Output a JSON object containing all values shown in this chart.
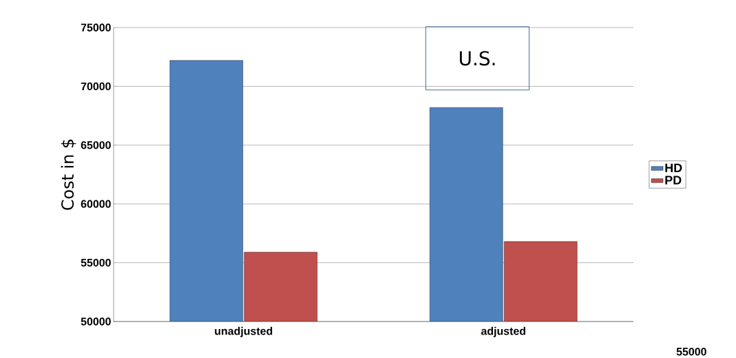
{
  "chart_data": {
    "type": "bar",
    "title": "U.S.",
    "ylabel": "Cost in $",
    "categories": [
      "unadjusted",
      "adjusted"
    ],
    "series": [
      {
        "name": "HD",
        "color": "#4f81bd",
        "values": [
          72200,
          68200
        ]
      },
      {
        "name": "PD",
        "color": "#c0504d",
        "values": [
          55900,
          56800
        ]
      }
    ],
    "ylim": [
      50000,
      75000
    ],
    "yticks": [
      50000,
      55000,
      60000,
      65000,
      70000,
      75000
    ],
    "grid": "y",
    "legend": "right",
    "annotations": [
      "55000"
    ]
  }
}
